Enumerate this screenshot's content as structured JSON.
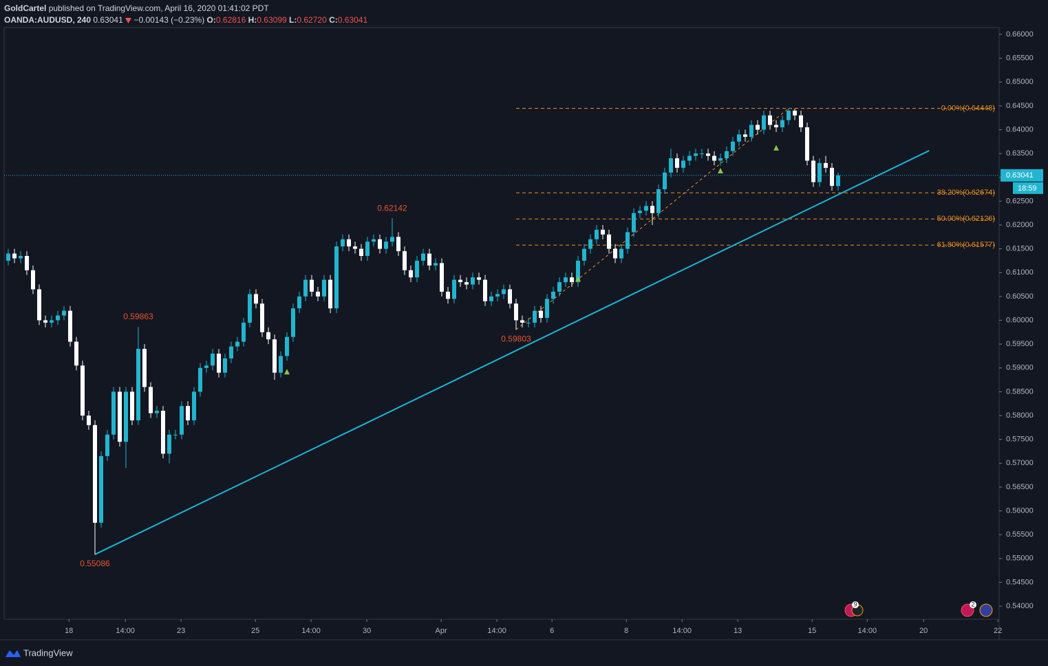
{
  "header": {
    "author": "GoldCartel",
    "published": "published on TradingView.com, April 16, 2020 01:41:02 PDT",
    "symbol": "OANDA:AUDUSD, 240",
    "last": "0.63041",
    "change": "−0.00143 (−0.23%)",
    "ohlc": [
      {
        "key": "O:",
        "value": "0.62816"
      },
      {
        "key": "H:",
        "value": "0.63099"
      },
      {
        "key": "L:",
        "value": "0.62720"
      },
      {
        "key": "C:",
        "value": "0.63041"
      }
    ]
  },
  "footer": {
    "brand": "TradingView"
  },
  "chart_data": {
    "type": "candlestick",
    "up_color": "#22b5cf",
    "down_color": "#ffffff",
    "ylim": [
      0.53726,
      0.66144
    ],
    "yticks": [
      {
        "value": 0.54,
        "label": "0.54000"
      },
      {
        "value": 0.545,
        "label": "0.54500"
      },
      {
        "value": 0.55,
        "label": "0.55000"
      },
      {
        "value": 0.555,
        "label": "0.55500"
      },
      {
        "value": 0.56,
        "label": "0.56000"
      },
      {
        "value": 0.565,
        "label": "0.56500"
      },
      {
        "value": 0.57,
        "label": "0.57000"
      },
      {
        "value": 0.575,
        "label": "0.57500"
      },
      {
        "value": 0.58,
        "label": "0.58000"
      },
      {
        "value": 0.585,
        "label": "0.58500"
      },
      {
        "value": 0.59,
        "label": "0.59000"
      },
      {
        "value": 0.595,
        "label": "0.59500"
      },
      {
        "value": 0.6,
        "label": "0.60000"
      },
      {
        "value": 0.605,
        "label": "0.60500"
      },
      {
        "value": 0.61,
        "label": "0.61000"
      },
      {
        "value": 0.615,
        "label": "0.61500"
      },
      {
        "value": 0.62,
        "label": "0.62000"
      },
      {
        "value": 0.625,
        "label": "0.62500"
      },
      {
        "value": 0.63,
        "label": "0.63000"
      },
      {
        "value": 0.635,
        "label": "0.63500"
      },
      {
        "value": 0.64,
        "label": "0.64000"
      },
      {
        "value": 0.645,
        "label": "0.64500"
      },
      {
        "value": 0.65,
        "label": "0.65000"
      },
      {
        "value": 0.655,
        "label": "0.65500"
      },
      {
        "value": 0.66,
        "label": "0.66000"
      }
    ],
    "xlim": [
      -0.667,
      160
    ],
    "xticks": [
      {
        "value": 9.8,
        "label": "18"
      },
      {
        "value": 18.9,
        "label": "14:00"
      },
      {
        "value": 27.9,
        "label": "23"
      },
      {
        "value": 39.9,
        "label": "25"
      },
      {
        "value": 48.9,
        "label": "14:00"
      },
      {
        "value": 57.9,
        "label": "30"
      },
      {
        "value": 69.9,
        "label": "Apr"
      },
      {
        "value": 78.9,
        "label": "14:00"
      },
      {
        "value": 87.8,
        "label": "6"
      },
      {
        "value": 99.8,
        "label": "8"
      },
      {
        "value": 108.8,
        "label": "14:00"
      },
      {
        "value": 117.8,
        "label": "13"
      },
      {
        "value": 129.8,
        "label": "15"
      },
      {
        "value": 138.7,
        "label": "14:00"
      },
      {
        "value": 147.8,
        "label": "20"
      },
      {
        "value": 159.8,
        "label": "22"
      }
    ],
    "open": [
      0.6125,
      0.614,
      0.613,
      0.6135,
      0.6105,
      0.6065,
      0.6,
      0.5995,
      0.6,
      0.601,
      0.602,
      0.5955,
      0.5905,
      0.58,
      0.578,
      0.5575,
      0.5715,
      0.576,
      0.585,
      0.5745,
      0.585,
      0.579,
      0.594,
      0.586,
      0.5805,
      0.581,
      0.572,
      0.576,
      0.576,
      0.582,
      0.579,
      0.585,
      0.59,
      0.5905,
      0.593,
      0.589,
      0.592,
      0.5945,
      0.5955,
      0.5995,
      0.6055,
      0.6035,
      0.5975,
      0.596,
      0.589,
      0.5925,
      0.5965,
      0.6025,
      0.605,
      0.6085,
      0.606,
      0.605,
      0.6085,
      0.6025,
      0.6155,
      0.617,
      0.6155,
      0.615,
      0.6135,
      0.6165,
      0.617,
      0.615,
      0.6165,
      0.6175,
      0.6145,
      0.6105,
      0.609,
      0.6125,
      0.614,
      0.6115,
      0.612,
      0.606,
      0.6045,
      0.6085,
      0.608,
      0.6075,
      0.609,
      0.6085,
      0.604,
      0.605,
      0.6055,
      0.6065,
      0.6035,
      0.6,
      0.5995,
      0.5995,
      0.602,
      0.6005,
      0.6045,
      0.606,
      0.608,
      0.609,
      0.608,
      0.6125,
      0.615,
      0.617,
      0.619,
      0.618,
      0.615,
      0.613,
      0.615,
      0.6185,
      0.6225,
      0.623,
      0.624,
      0.6225,
      0.6275,
      0.631,
      0.634,
      0.632,
      0.6335,
      0.6345,
      0.635,
      0.635,
      0.6345,
      0.6335,
      0.634,
      0.6355,
      0.6375,
      0.639,
      0.6385,
      0.641,
      0.64,
      0.643,
      0.641,
      0.6405,
      0.642,
      0.644,
      0.643,
      0.6405,
      0.6335,
      0.629,
      0.633,
      0.632,
      0.62816
    ],
    "high": [
      0.615,
      0.615,
      0.6145,
      0.6145,
      0.6115,
      0.6075,
      0.601,
      0.601,
      0.602,
      0.603,
      0.603,
      0.5965,
      0.5915,
      0.581,
      0.579,
      0.5725,
      0.577,
      0.586,
      0.586,
      0.586,
      0.586,
      0.59863,
      0.595,
      0.587,
      0.582,
      0.582,
      0.577,
      0.577,
      0.583,
      0.583,
      0.586,
      0.591,
      0.5915,
      0.594,
      0.594,
      0.593,
      0.5955,
      0.5965,
      0.6005,
      0.6065,
      0.6065,
      0.6045,
      0.5985,
      0.597,
      0.5935,
      0.5975,
      0.6035,
      0.606,
      0.6095,
      0.6095,
      0.607,
      0.6095,
      0.6095,
      0.6165,
      0.618,
      0.618,
      0.6165,
      0.616,
      0.6175,
      0.618,
      0.618,
      0.6175,
      0.62142,
      0.6185,
      0.6155,
      0.6115,
      0.6135,
      0.615,
      0.615,
      0.613,
      0.613,
      0.607,
      0.6095,
      0.6095,
      0.609,
      0.61,
      0.61,
      0.6095,
      0.606,
      0.6065,
      0.6075,
      0.6075,
      0.6045,
      0.601,
      0.6005,
      0.603,
      0.603,
      0.6055,
      0.607,
      0.609,
      0.61,
      0.61,
      0.6135,
      0.616,
      0.618,
      0.62,
      0.62,
      0.619,
      0.616,
      0.616,
      0.6195,
      0.6235,
      0.624,
      0.625,
      0.625,
      0.6285,
      0.632,
      0.636,
      0.635,
      0.6345,
      0.6355,
      0.636,
      0.636,
      0.636,
      0.6355,
      0.635,
      0.6365,
      0.6385,
      0.64,
      0.64,
      0.642,
      0.642,
      0.644,
      0.644,
      0.642,
      0.643,
      0.64448,
      0.6444,
      0.644,
      0.6415,
      0.6345,
      0.634,
      0.6345,
      0.633,
      0.63099
    ],
    "low": [
      0.6115,
      0.612,
      0.612,
      0.6095,
      0.6055,
      0.599,
      0.5985,
      0.5985,
      0.599,
      0.6,
      0.5945,
      0.5895,
      0.579,
      0.577,
      0.55086,
      0.5565,
      0.5705,
      0.575,
      0.5735,
      0.569,
      0.578,
      0.578,
      0.585,
      0.5795,
      0.5795,
      0.571,
      0.57,
      0.575,
      0.575,
      0.578,
      0.578,
      0.584,
      0.589,
      0.5895,
      0.588,
      0.588,
      0.591,
      0.5935,
      0.5945,
      0.5985,
      0.6025,
      0.5965,
      0.595,
      0.5875,
      0.588,
      0.5915,
      0.5955,
      0.6015,
      0.604,
      0.605,
      0.604,
      0.604,
      0.6015,
      0.6015,
      0.6145,
      0.6145,
      0.614,
      0.6125,
      0.6125,
      0.6155,
      0.614,
      0.614,
      0.6155,
      0.6135,
      0.6095,
      0.608,
      0.608,
      0.6115,
      0.6105,
      0.6105,
      0.605,
      0.6035,
      0.6035,
      0.607,
      0.6065,
      0.6065,
      0.6075,
      0.603,
      0.603,
      0.604,
      0.6045,
      0.6025,
      0.59803,
      0.5985,
      0.5985,
      0.5985,
      0.5995,
      0.5995,
      0.6035,
      0.605,
      0.607,
      0.607,
      0.607,
      0.6115,
      0.614,
      0.616,
      0.617,
      0.614,
      0.612,
      0.612,
      0.614,
      0.6175,
      0.6215,
      0.622,
      0.62,
      0.6215,
      0.6265,
      0.63,
      0.631,
      0.631,
      0.6325,
      0.6335,
      0.634,
      0.6335,
      0.6325,
      0.6325,
      0.633,
      0.6345,
      0.6365,
      0.6375,
      0.6375,
      0.639,
      0.639,
      0.64,
      0.6395,
      0.6395,
      0.641,
      0.642,
      0.6395,
      0.6325,
      0.628,
      0.628,
      0.631,
      0.6272,
      0.6272
    ],
    "close": [
      0.614,
      0.613,
      0.6135,
      0.6105,
      0.6065,
      0.6,
      0.5995,
      0.6,
      0.601,
      0.602,
      0.5955,
      0.5905,
      0.58,
      0.578,
      0.5575,
      0.5715,
      0.576,
      0.585,
      0.5745,
      0.585,
      0.579,
      0.594,
      0.586,
      0.5805,
      0.581,
      0.572,
      0.576,
      0.576,
      0.582,
      0.579,
      0.585,
      0.59,
      0.5905,
      0.593,
      0.589,
      0.592,
      0.5945,
      0.5955,
      0.5995,
      0.6055,
      0.6035,
      0.5975,
      0.596,
      0.589,
      0.5925,
      0.5965,
      0.6025,
      0.605,
      0.6085,
      0.606,
      0.605,
      0.6085,
      0.6025,
      0.6155,
      0.617,
      0.6155,
      0.615,
      0.6135,
      0.6165,
      0.617,
      0.615,
      0.6165,
      0.6175,
      0.6145,
      0.6105,
      0.609,
      0.6125,
      0.614,
      0.6115,
      0.612,
      0.606,
      0.6045,
      0.6085,
      0.608,
      0.6075,
      0.609,
      0.6085,
      0.604,
      0.605,
      0.6055,
      0.6065,
      0.6035,
      0.6,
      0.5995,
      0.5995,
      0.602,
      0.6005,
      0.6045,
      0.606,
      0.608,
      0.609,
      0.608,
      0.6125,
      0.615,
      0.617,
      0.619,
      0.618,
      0.615,
      0.613,
      0.615,
      0.6185,
      0.6225,
      0.623,
      0.624,
      0.6225,
      0.6275,
      0.631,
      0.634,
      0.632,
      0.6335,
      0.6345,
      0.635,
      0.635,
      0.6345,
      0.6335,
      0.634,
      0.6355,
      0.6375,
      0.639,
      0.6385,
      0.641,
      0.64,
      0.643,
      0.641,
      0.6405,
      0.642,
      0.644,
      0.643,
      0.6405,
      0.6335,
      0.629,
      0.633,
      0.632,
      0.6282,
      0.63041
    ],
    "trendline": {
      "color": "#1cb6d4",
      "x": [
        14,
        148.7
      ],
      "y": [
        0.55086,
        0.6356
      ]
    },
    "fib": {
      "color": "#f0901c",
      "anchor_x": [
        82,
        126
      ],
      "anchor_y": [
        0.59803,
        0.64448
      ],
      "levels": [
        {
          "value": 0.64448,
          "label": "0.00%(0.64448)"
        },
        {
          "value": 0.62674,
          "label": "38.20%(0.62674)"
        },
        {
          "value": 0.62126,
          "label": "50.00%(0.62126)"
        },
        {
          "value": 0.61577,
          "label": "61.80%(0.61577)"
        }
      ]
    },
    "annotations": [
      {
        "x": 21,
        "value": 0.59863,
        "position": "above"
      },
      {
        "x": 62,
        "value": 0.62142,
        "position": "above"
      },
      {
        "x": 82,
        "value": 0.59803,
        "position": "below"
      },
      {
        "x": 14,
        "value": 0.55086,
        "position": "below"
      }
    ],
    "annotation_color": "#e8542c",
    "signals": {
      "color": "#8bc34a",
      "x": [
        45,
        92,
        115,
        124
      ],
      "y": [
        0.5892,
        0.6087,
        0.6314,
        0.6362
      ]
    },
    "price_line": {
      "value": 0.63041,
      "countdown": "18:59",
      "color": "#22b5cf"
    },
    "events": [
      "9",
      "2"
    ]
  }
}
